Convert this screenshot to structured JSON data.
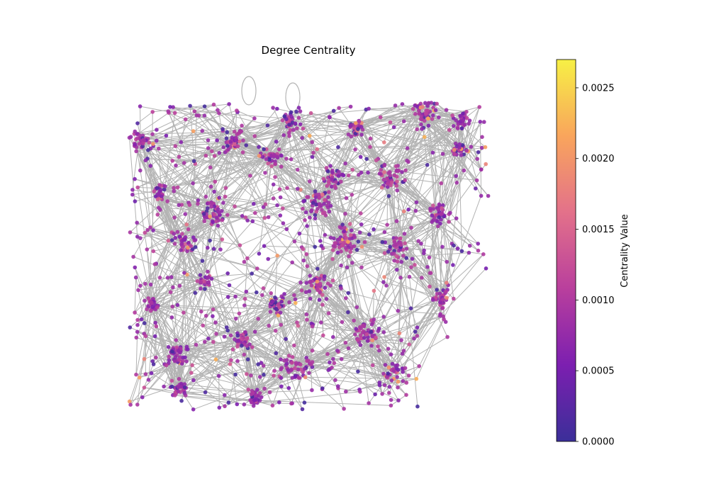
{
  "chart_data": {
    "type": "network",
    "title": "Degree Centrality",
    "colorbar": {
      "label": "Centrality Value",
      "range": [
        0.0,
        0.0027
      ],
      "ticks": [
        0.0,
        0.0005,
        0.001,
        0.0015,
        0.002,
        0.0025
      ],
      "tick_labels": [
        "0.0000",
        "0.0005",
        "0.0010",
        "0.0015",
        "0.0020",
        "0.0025"
      ],
      "colormap": "plasma",
      "stops": [
        "#3b2f99",
        "#7c1fb0",
        "#b93f9d",
        "#e3718a",
        "#f9a55c",
        "#f7f045"
      ]
    },
    "edge_color": "#b3b3b3",
    "axes_visible": false
  }
}
